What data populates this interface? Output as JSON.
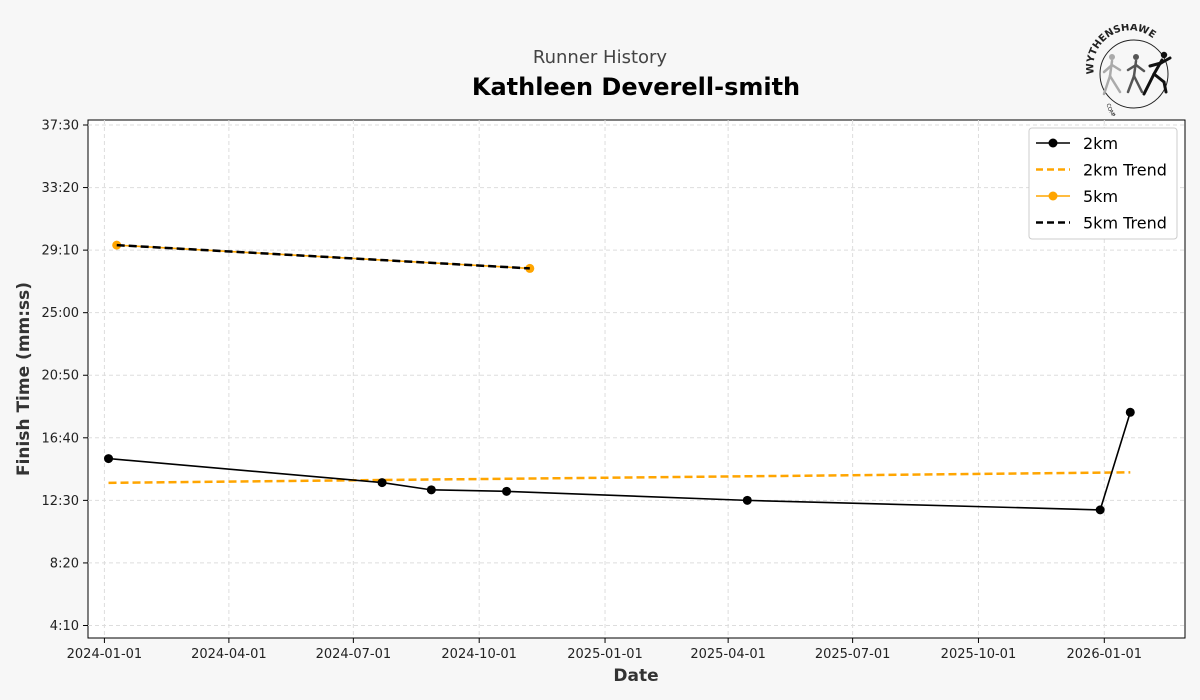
{
  "header": {
    "subtitle": "Runner History",
    "title": "Kathleen Deverell-smith"
  },
  "logo": {
    "top_text": "WYTHENSHAWE",
    "bottom_text": "COMMUNITY RUN",
    "icon": "runners-logo-icon"
  },
  "chart_data": {
    "type": "line",
    "xlabel": "Date",
    "ylabel": "Finish Time (mm:ss)",
    "x_ticks": [
      "2024-01-01",
      "2024-04-01",
      "2024-07-01",
      "2024-10-01",
      "2025-01-01",
      "2025-04-01",
      "2025-07-01",
      "2025-10-01",
      "2026-01-01"
    ],
    "xlim": [
      "2023-12-20",
      "2026-03-01"
    ],
    "y_ticks": [
      250,
      500,
      750,
      1000,
      1250,
      1500,
      1750,
      2000,
      2250
    ],
    "y_tick_labels": [
      "4:10",
      "8:20",
      "12:30",
      "16:40",
      "20:50",
      "25:00",
      "29:10",
      "33:20",
      "37:30"
    ],
    "ylim": [
      200,
      2270
    ],
    "grid": true,
    "legend_position": "top-right",
    "series": [
      {
        "name": "2km",
        "style": "solid-markers",
        "color": "#000000",
        "x": [
          "2024-01-04",
          "2024-07-22",
          "2024-08-27",
          "2024-10-21",
          "2025-04-15",
          "2025-12-29",
          "2026-01-20"
        ],
        "y": [
          917,
          821,
          792,
          786,
          750,
          712,
          1102
        ]
      },
      {
        "name": "2km Trend",
        "style": "dashed",
        "color": "#ffa500",
        "x": [
          "2024-01-04",
          "2026-01-20"
        ],
        "y": [
          820,
          862
        ]
      },
      {
        "name": "5km",
        "style": "solid-markers",
        "color": "#ffa500",
        "x": [
          "2024-01-10",
          "2024-11-07"
        ],
        "y": [
          1770,
          1677
        ]
      },
      {
        "name": "5km Trend",
        "style": "dashed",
        "color": "#000000",
        "x": [
          "2024-01-10",
          "2024-11-07"
        ],
        "y": [
          1770,
          1677
        ]
      }
    ]
  }
}
